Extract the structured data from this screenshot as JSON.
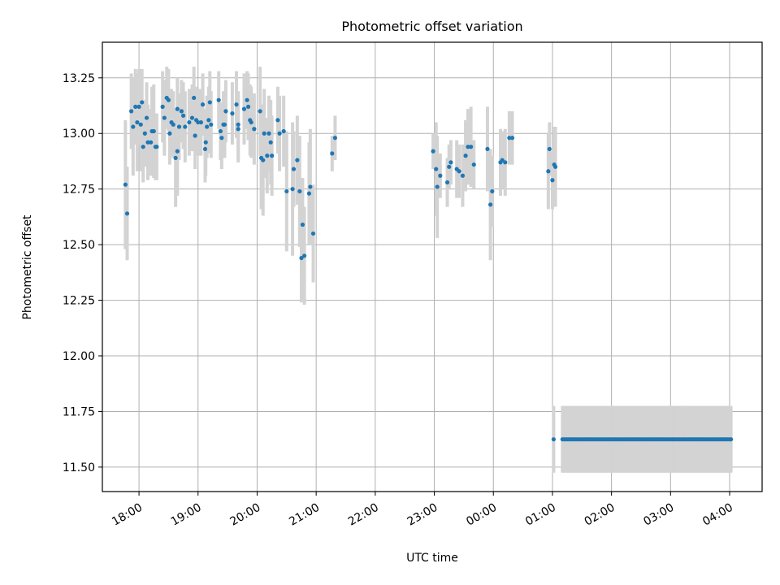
{
  "chart_data": {
    "type": "scatter",
    "title": "Photometric offset variation",
    "xlabel": "UTC time",
    "ylabel": "Photometric offset",
    "xlim_hours": [
      17.38,
      28.55
    ],
    "ylim": [
      11.39,
      13.41
    ],
    "grid": true,
    "colors": {
      "points": "#1f77b4",
      "errorbars": "#d3d3d3"
    },
    "x_ticks": [
      {
        "h": 18,
        "label": "18:00"
      },
      {
        "h": 19,
        "label": "19:00"
      },
      {
        "h": 20,
        "label": "20:00"
      },
      {
        "h": 21,
        "label": "21:00"
      },
      {
        "h": 22,
        "label": "22:00"
      },
      {
        "h": 23,
        "label": "23:00"
      },
      {
        "h": 24,
        "label": "00:00"
      },
      {
        "h": 25,
        "label": "01:00"
      },
      {
        "h": 26,
        "label": "02:00"
      },
      {
        "h": 27,
        "label": "03:00"
      },
      {
        "h": 28,
        "label": "04:00"
      }
    ],
    "y_ticks": [
      {
        "v": 11.5,
        "label": "11.50"
      },
      {
        "v": 11.75,
        "label": "11.75"
      },
      {
        "v": 12.0,
        "label": "12.00"
      },
      {
        "v": 12.25,
        "label": "12.25"
      },
      {
        "v": 12.5,
        "label": "12.50"
      },
      {
        "v": 12.75,
        "label": "12.75"
      },
      {
        "v": 13.0,
        "label": "13.00"
      },
      {
        "v": 13.25,
        "label": "13.25"
      }
    ],
    "points": [
      [
        17.77,
        12.77,
        0.29
      ],
      [
        17.8,
        12.64,
        0.21
      ],
      [
        17.87,
        13.1,
        0.17
      ],
      [
        17.9,
        13.03,
        0.22
      ],
      [
        17.94,
        13.12,
        0.17
      ],
      [
        17.97,
        13.05,
        0.22
      ],
      [
        18.0,
        13.12,
        0.17
      ],
      [
        18.03,
        13.04,
        0.21
      ],
      [
        18.05,
        13.14,
        0.15
      ],
      [
        18.07,
        12.94,
        0.16
      ],
      [
        18.1,
        13.0,
        0.15
      ],
      [
        18.13,
        13.07,
        0.16
      ],
      [
        18.15,
        12.96,
        0.17
      ],
      [
        18.2,
        12.96,
        0.15
      ],
      [
        18.22,
        13.01,
        0.2
      ],
      [
        18.25,
        13.01,
        0.21
      ],
      [
        18.28,
        12.94,
        0.15
      ],
      [
        18.3,
        12.94,
        0.15
      ],
      [
        18.4,
        13.12,
        0.16
      ],
      [
        18.43,
        13.07,
        0.17
      ],
      [
        18.47,
        13.16,
        0.14
      ],
      [
        18.5,
        13.15,
        0.14
      ],
      [
        18.52,
        13.0,
        0.14
      ],
      [
        18.55,
        13.05,
        0.15
      ],
      [
        18.58,
        13.04,
        0.15
      ],
      [
        18.62,
        12.89,
        0.22
      ],
      [
        18.65,
        12.92,
        0.2
      ],
      [
        18.65,
        13.11,
        0.14
      ],
      [
        18.68,
        13.03,
        0.15
      ],
      [
        18.72,
        13.1,
        0.14
      ],
      [
        18.75,
        13.08,
        0.15
      ],
      [
        18.78,
        13.03,
        0.16
      ],
      [
        18.85,
        13.05,
        0.15
      ],
      [
        18.9,
        13.07,
        0.15
      ],
      [
        18.93,
        13.16,
        0.14
      ],
      [
        18.95,
        12.99,
        0.15
      ],
      [
        18.97,
        13.06,
        0.15
      ],
      [
        19.0,
        13.05,
        0.15
      ],
      [
        19.05,
        13.05,
        0.15
      ],
      [
        19.08,
        13.13,
        0.14
      ],
      [
        19.12,
        12.93,
        0.15
      ],
      [
        19.13,
        12.96,
        0.15
      ],
      [
        19.15,
        13.03,
        0.14
      ],
      [
        19.18,
        13.06,
        0.15
      ],
      [
        19.2,
        13.14,
        0.14
      ],
      [
        19.22,
        13.04,
        0.15
      ],
      [
        19.35,
        13.15,
        0.13
      ],
      [
        19.38,
        13.01,
        0.13
      ],
      [
        19.4,
        12.98,
        0.14
      ],
      [
        19.43,
        13.04,
        0.15
      ],
      [
        19.45,
        13.04,
        0.15
      ],
      [
        19.47,
        13.1,
        0.14
      ],
      [
        19.58,
        13.09,
        0.14
      ],
      [
        19.65,
        13.13,
        0.15
      ],
      [
        19.68,
        13.04,
        0.15
      ],
      [
        19.68,
        13.02,
        0.15
      ],
      [
        19.78,
        13.11,
        0.16
      ],
      [
        19.83,
        13.15,
        0.13
      ],
      [
        19.85,
        13.12,
        0.15
      ],
      [
        19.88,
        13.06,
        0.16
      ],
      [
        19.9,
        13.05,
        0.16
      ],
      [
        19.95,
        13.02,
        0.16
      ],
      [
        20.05,
        13.1,
        0.2
      ],
      [
        20.07,
        12.89,
        0.23
      ],
      [
        20.1,
        12.88,
        0.25
      ],
      [
        20.12,
        13.0,
        0.2
      ],
      [
        20.17,
        12.9,
        0.17
      ],
      [
        20.2,
        13.0,
        0.17
      ],
      [
        20.23,
        12.96,
        0.19
      ],
      [
        20.25,
        12.9,
        0.18
      ],
      [
        20.35,
        13.06,
        0.15
      ],
      [
        20.38,
        13.0,
        0.17
      ],
      [
        20.45,
        13.01,
        0.16
      ],
      [
        20.5,
        12.74,
        0.27
      ],
      [
        20.6,
        12.75,
        0.3
      ],
      [
        20.62,
        12.84,
        0.17
      ],
      [
        20.68,
        12.88,
        0.2
      ],
      [
        20.72,
        12.74,
        0.25
      ],
      [
        20.75,
        12.44,
        0.2
      ],
      [
        20.77,
        12.59,
        0.21
      ],
      [
        20.8,
        12.45,
        0.22
      ],
      [
        20.88,
        12.73,
        0.23
      ],
      [
        20.9,
        12.76,
        0.26
      ],
      [
        20.95,
        12.55,
        0.22
      ],
      [
        21.27,
        12.91,
        0.08
      ],
      [
        21.32,
        12.98,
        0.1
      ],
      [
        22.98,
        12.92,
        0.08
      ],
      [
        23.03,
        12.84,
        0.21
      ],
      [
        23.05,
        12.76,
        0.23
      ],
      [
        23.1,
        12.81,
        0.1
      ],
      [
        23.22,
        12.78,
        0.11
      ],
      [
        23.25,
        12.85,
        0.1
      ],
      [
        23.28,
        12.87,
        0.1
      ],
      [
        23.38,
        12.84,
        0.13
      ],
      [
        23.42,
        12.83,
        0.12
      ],
      [
        23.48,
        12.81,
        0.14
      ],
      [
        23.53,
        12.9,
        0.16
      ],
      [
        23.57,
        12.94,
        0.17
      ],
      [
        23.62,
        12.94,
        0.18
      ],
      [
        23.67,
        12.86,
        0.11
      ],
      [
        23.9,
        12.93,
        0.19
      ],
      [
        23.95,
        12.68,
        0.25
      ],
      [
        23.98,
        12.74,
        0.16
      ],
      [
        24.12,
        12.87,
        0.15
      ],
      [
        24.15,
        12.88,
        0.13
      ],
      [
        24.2,
        12.87,
        0.15
      ],
      [
        24.27,
        12.98,
        0.12
      ],
      [
        24.32,
        12.98,
        0.12
      ],
      [
        24.93,
        12.83,
        0.17
      ],
      [
        24.95,
        12.93,
        0.12
      ],
      [
        25.0,
        12.79,
        0.13
      ],
      [
        25.03,
        12.86,
        0.17
      ],
      [
        25.05,
        12.85,
        0.18
      ]
    ],
    "dense_series": {
      "y": 11.625,
      "err": 0.15,
      "first_h": 25.02,
      "start_h": 25.17,
      "end_h": 28.03,
      "step_h": 0.031
    }
  }
}
